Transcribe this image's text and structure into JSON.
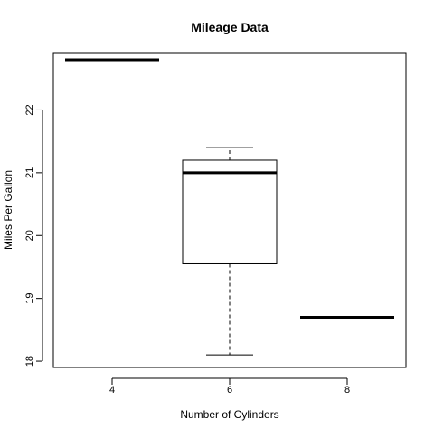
{
  "chart_data": {
    "type": "box",
    "title": "Mileage Data",
    "xlabel": "Number of Cylinders",
    "ylabel": "Miles Per Gallon",
    "categories": [
      "4",
      "6",
      "8"
    ],
    "ylim": [
      17.9,
      22.9
    ],
    "yticks": [
      "18",
      "19",
      "20",
      "21",
      "22"
    ],
    "grid": false,
    "boxes": [
      {
        "group": "4",
        "min": 22.8,
        "q1": 22.8,
        "median": 22.8,
        "q3": 22.8,
        "max": 22.8
      },
      {
        "group": "6",
        "min": 18.1,
        "q1": 19.55,
        "median": 21.0,
        "q3": 21.2,
        "max": 21.4
      },
      {
        "group": "8",
        "min": 18.7,
        "q1": 18.7,
        "median": 18.7,
        "q3": 18.7,
        "max": 18.7
      }
    ]
  }
}
